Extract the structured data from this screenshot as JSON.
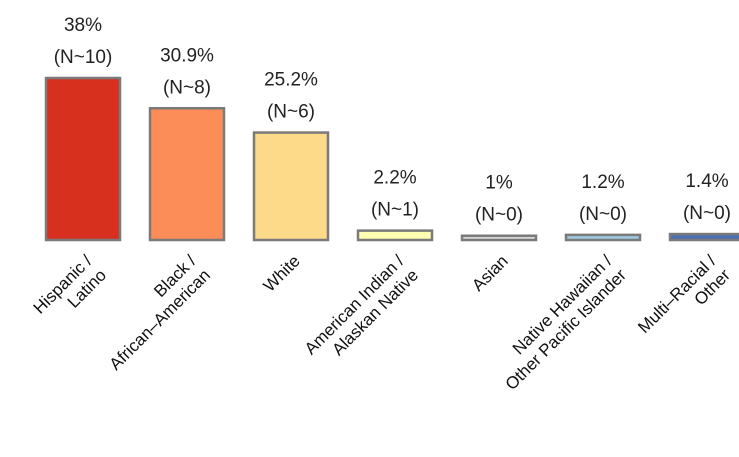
{
  "chart_data": {
    "type": "bar",
    "categories": [
      [
        "Hispanic /",
        "Latino"
      ],
      [
        "Black /",
        "African–American"
      ],
      [
        "White"
      ],
      [
        "American Indian /",
        "Alaskan Native"
      ],
      [
        "Asian"
      ],
      [
        "Native Hawaiian /",
        "Other Pacific Islander"
      ],
      [
        "Multi–Racial /",
        "Other"
      ]
    ],
    "values": [
      38,
      30.9,
      25.2,
      2.2,
      1,
      1.2,
      1.4
    ],
    "value_labels": [
      "38%",
      "30.9%",
      "25.2%",
      "2.2%",
      "1%",
      "1.2%",
      "1.4%"
    ],
    "count_labels": [
      "(N~10)",
      "(N~8)",
      "(N~6)",
      "(N~1)",
      "(N~0)",
      "(N~0)",
      "(N~0)"
    ],
    "colors": [
      "#d7301f",
      "#fc8d59",
      "#fdd98a",
      "#ffffb2",
      "#d9d9d9",
      "#9ecae1",
      "#4a6fb0"
    ],
    "ylim": [
      0,
      38
    ],
    "grid": false,
    "legend": "none"
  }
}
